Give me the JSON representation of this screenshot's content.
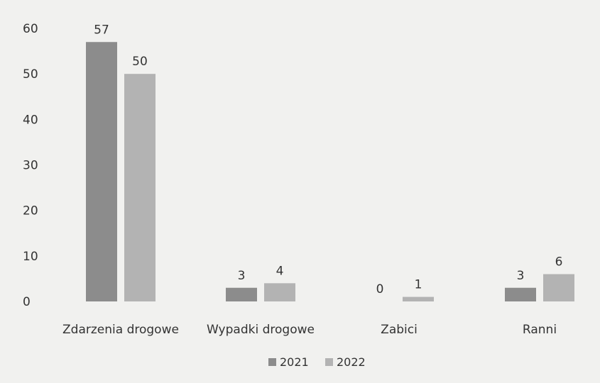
{
  "chart_data": {
    "type": "bar",
    "title": "",
    "xlabel": "",
    "ylabel": "",
    "ylim": [
      0,
      60
    ],
    "yticks": [
      0,
      10,
      20,
      30,
      40,
      50,
      60
    ],
    "grid": false,
    "legend_position": "bottom",
    "categories": [
      "Zdarzenia drogowe",
      "Wypadki drogowe",
      "Zabici",
      "Ranni"
    ],
    "series": [
      {
        "name": "2021",
        "values": [
          57,
          3,
          0,
          3
        ],
        "color": "#8c8c8c"
      },
      {
        "name": "2022",
        "values": [
          50,
          4,
          1,
          6
        ],
        "color": "#b3b3b3"
      }
    ]
  }
}
